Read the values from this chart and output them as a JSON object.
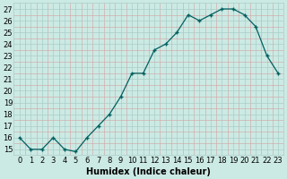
{
  "x": [
    0,
    1,
    2,
    3,
    4,
    5,
    6,
    7,
    8,
    9,
    10,
    11,
    12,
    13,
    14,
    15,
    16,
    17,
    18,
    19,
    20,
    21,
    22,
    23
  ],
  "y": [
    16,
    15,
    15,
    16,
    15,
    14.8,
    16,
    17,
    18,
    19.5,
    21.5,
    21.5,
    23.5,
    24,
    25,
    26.5,
    26,
    26.5,
    27,
    27,
    26.5,
    25.5,
    23,
    21.5
  ],
  "line_color": "#006060",
  "marker": "+",
  "markersize": 3.5,
  "linewidth": 0.9,
  "bg_color": "#cceae4",
  "grid_color_major": "#aaccc8",
  "grid_color_minor": "#c4e2dc",
  "xlabel": "Humidex (Indice chaleur)",
  "xlabel_fontsize": 7,
  "tick_fontsize": 6,
  "ylim": [
    14.5,
    27.5
  ],
  "yticks": [
    15,
    16,
    17,
    18,
    19,
    20,
    21,
    22,
    23,
    24,
    25,
    26,
    27
  ],
  "xticks": [
    0,
    1,
    2,
    3,
    4,
    5,
    6,
    7,
    8,
    9,
    10,
    11,
    12,
    13,
    14,
    15,
    16,
    17,
    18,
    19,
    20,
    21,
    22,
    23
  ],
  "xlim": [
    -0.5,
    23.5
  ]
}
